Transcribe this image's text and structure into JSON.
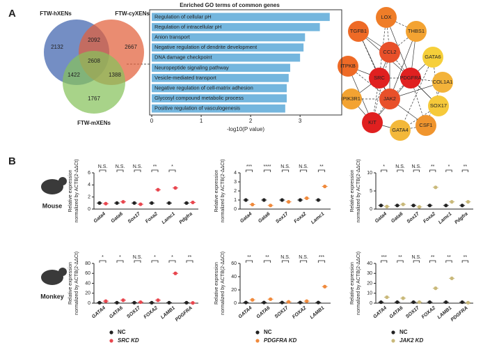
{
  "panel_labels": [
    "A",
    "B"
  ],
  "venn": {
    "sets": [
      {
        "label": "FTW-hXENs",
        "color": "#3f63ad"
      },
      {
        "label": "FTW-cyXENs",
        "color": "#e2603a"
      },
      {
        "label": "FTW-mXENs",
        "color": "#86c25c"
      }
    ],
    "counts": [
      "2132",
      "2092",
      "2667",
      "2608",
      "1422",
      "1388",
      "1767"
    ]
  },
  "network": {
    "nodes": [
      {
        "label": "TGFB1",
        "color": "#ee6a26"
      },
      {
        "label": "LOX",
        "color": "#ef7d28"
      },
      {
        "label": "THBS1",
        "color": "#f3a332"
      },
      {
        "label": "CCL2",
        "color": "#e8502a"
      },
      {
        "label": "GATA6",
        "color": "#f6cf3a"
      },
      {
        "label": "ITPKB",
        "color": "#ee6a26"
      },
      {
        "label": "SRC",
        "color": "#e02020"
      },
      {
        "label": "PDGFRA",
        "color": "#e02020"
      },
      {
        "label": "COL1A1",
        "color": "#f3b33a"
      },
      {
        "label": "PIK3R1",
        "color": "#f3a332"
      },
      {
        "label": "JAK2",
        "color": "#e8502a"
      },
      {
        "label": "SOX17",
        "color": "#f6c93a"
      },
      {
        "label": "KIT",
        "color": "#e02020"
      },
      {
        "label": "GATA4",
        "color": "#f3b83a"
      },
      {
        "label": "CSF1",
        "color": "#f0952e"
      }
    ]
  },
  "animals": [
    "Mouse",
    "Monkey"
  ],
  "chart_data": [
    {
      "type": "barh",
      "title": "Enriched GO terms of common genes",
      "xlabel": "-log10(P value)",
      "color": "#74b6de",
      "categories": [
        "Regulation of cellular pH",
        "Regulation of intracellular pH",
        "Anion transport",
        "Negative regulation of dendrite development",
        "DNA damage checkpoint",
        "Neuropeptide signaling pathway",
        "Vesicle-mediated transport",
        "Negative regulation of cell-matrix adhesion",
        "Glycosyl compound metabolic process",
        "Positive regulation of vasculogenesis"
      ],
      "values": [
        3.6,
        3.4,
        3.1,
        3.07,
        3.0,
        2.8,
        2.77,
        2.73,
        2.73,
        2.7
      ],
      "xlim": [
        0,
        3.8
      ],
      "xticks": [
        0,
        1,
        2,
        3
      ]
    },
    {
      "type": "dot",
      "ylabel": [
        "Relative expression",
        "normalized by ACTB(2-ΔΔCt)"
      ],
      "categories": [
        "Gata4",
        "Gata6",
        "Sox17",
        "Foxa2",
        "Lamc1",
        "Pdgfra"
      ],
      "series": [
        {
          "color": "#222222",
          "values": [
            1,
            1,
            1,
            1,
            1,
            1
          ]
        },
        {
          "color": "#e8474f",
          "values": [
            0.9,
            1.2,
            0.8,
            3.2,
            3.5,
            1.1
          ]
        }
      ],
      "annotations": [
        "N.S.",
        "N.S.",
        "N.S.",
        "**",
        "*",
        null
      ],
      "ylim": [
        0,
        6
      ],
      "yticks": [
        0,
        2,
        4,
        6
      ]
    },
    {
      "type": "dot",
      "ylabel": [
        "Relative expression",
        "normalized by ACTB(2-ΔΔCt)"
      ],
      "categories": [
        "Gata4",
        "Gata6",
        "Sox17",
        "Foxa2",
        "Lamc1"
      ],
      "series": [
        {
          "color": "#222222",
          "values": [
            1,
            1,
            1,
            1,
            1
          ]
        },
        {
          "color": "#f08a3c",
          "values": [
            0.5,
            0.4,
            0.8,
            1.2,
            2.5
          ]
        }
      ],
      "annotations": [
        "***",
        "****",
        "N.S.",
        "N.S.",
        "**"
      ],
      "ylim": [
        0,
        4
      ],
      "yticks": [
        0,
        1,
        2,
        3,
        4
      ]
    },
    {
      "type": "dot",
      "ylabel": [
        "Relative expression",
        "normalized by ACTB(2-ΔΔCt)"
      ],
      "categories": [
        "Gata4",
        "Gata6",
        "Sox17",
        "Foxa2",
        "Lamc1",
        "Pdgfra"
      ],
      "series": [
        {
          "color": "#222222",
          "values": [
            1,
            1,
            1,
            1,
            1,
            1
          ]
        },
        {
          "color": "#c9b97a",
          "values": [
            0.7,
            1.3,
            0.6,
            6,
            2,
            2
          ]
        }
      ],
      "annotations": [
        "*",
        "N.S.",
        "N.S.",
        "**",
        "*",
        "**"
      ],
      "ylim": [
        0,
        10
      ],
      "yticks": [
        0,
        5,
        10
      ]
    },
    {
      "type": "dot",
      "ylabel": [
        "Relative expression",
        "normalized by ACTB(2-ΔΔCt)"
      ],
      "categories": [
        "GATA4",
        "GATA6",
        "SOX17",
        "FOXA2",
        "LAMB1",
        "PDGFRA"
      ],
      "series": [
        {
          "name": "NC",
          "color": "#222222",
          "values": [
            1,
            1,
            1,
            1,
            1,
            1
          ]
        },
        {
          "name": "SRC KD",
          "color": "#e8474f",
          "values": [
            4,
            6,
            2,
            6,
            60,
            0.5
          ]
        }
      ],
      "annotations": [
        "*",
        "*",
        "N.S.",
        "*",
        "*",
        "**"
      ],
      "ylim": [
        0,
        80
      ],
      "yticks": [
        0,
        20,
        40,
        60,
        80
      ]
    },
    {
      "type": "dot",
      "ylabel": [
        "Relative expression",
        "normalized by ACTB(2-ΔΔCt)"
      ],
      "categories": [
        "GATA4",
        "GATA6",
        "SOX17",
        "FOXA2",
        "LAMB1"
      ],
      "series": [
        {
          "name": "NC",
          "color": "#222222",
          "values": [
            1,
            1,
            1,
            1,
            1
          ]
        },
        {
          "name": "PDGFRA KD",
          "color": "#f08a3c",
          "values": [
            5,
            6,
            2,
            3,
            25
          ]
        }
      ],
      "annotations": [
        "**",
        "**",
        "N.S.",
        "N.S.",
        "***"
      ],
      "ylim": [
        0,
        60
      ],
      "yticks": [
        0,
        20,
        40,
        60
      ]
    },
    {
      "type": "dot",
      "ylabel": [
        "Relative expression",
        "normalized by ACTB(2-ΔΔCt)"
      ],
      "categories": [
        "GATA4",
        "GATA6",
        "SOX17",
        "FOXA2",
        "LAMB1",
        "PDGFRA"
      ],
      "series": [
        {
          "name": "NC",
          "color": "#222222",
          "values": [
            1,
            1,
            1,
            1,
            1,
            1
          ]
        },
        {
          "name": "JAK2 KD",
          "color": "#c9b97a",
          "values": [
            6,
            5,
            1,
            15,
            25,
            0.5
          ]
        }
      ],
      "annotations": [
        "***",
        "**",
        "N.S.",
        "**",
        "**",
        "**"
      ],
      "ylim": [
        0,
        40
      ],
      "yticks": [
        0,
        10,
        20,
        30,
        40
      ]
    }
  ]
}
